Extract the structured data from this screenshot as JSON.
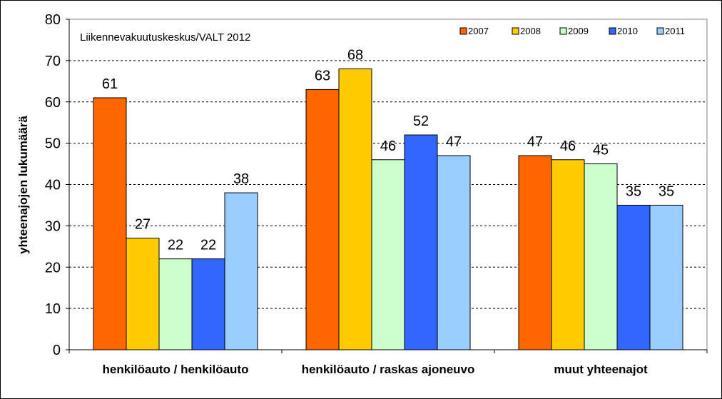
{
  "chart_data": {
    "type": "bar",
    "source_note": "Liikennevakuutuskeskus/VALT 2012",
    "ylabel": "yhteenajojen lukumäärä",
    "ylim": [
      0,
      80
    ],
    "yticks": [
      "0",
      "10",
      "20",
      "30",
      "40",
      "50",
      "60",
      "70",
      "80"
    ],
    "categories": [
      "henkilöauto / henkilöauto",
      "henkilöauto / raskas ajoneuvo",
      "muut yhteenajot"
    ],
    "series": [
      {
        "name": "2007",
        "color": "#FF6600",
        "values": [
          61,
          63,
          47
        ]
      },
      {
        "name": "2008",
        "color": "#FFCC00",
        "values": [
          27,
          68,
          46
        ]
      },
      {
        "name": "2009",
        "color": "#CCFFCC",
        "values": [
          22,
          46,
          45
        ]
      },
      {
        "name": "2010",
        "color": "#3366FF",
        "values": [
          22,
          52,
          35
        ]
      },
      {
        "name": "2011",
        "color": "#99CCFF",
        "values": [
          38,
          47,
          35
        ]
      }
    ],
    "grid": true,
    "legend_position": "top-right"
  }
}
